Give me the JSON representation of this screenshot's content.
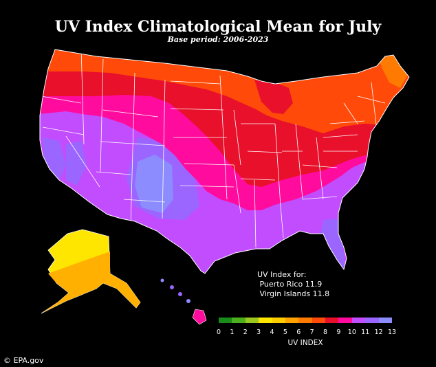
{
  "title": "UV Index Climatological Mean for July",
  "subtitle": "Base period: 2006-2023",
  "note": {
    "heading": "UV Index for:",
    "lines": [
      " Puerto Rico 11.9",
      " Virgin Islands 11.8"
    ]
  },
  "colorbar": {
    "label": "UV INDEX",
    "ticks": [
      "0",
      "1",
      "2",
      "3",
      "4",
      "5",
      "6",
      "7",
      "8",
      "9",
      "10",
      "11",
      "12",
      "13"
    ],
    "colors": [
      "#1a8a1a",
      "#4cb01e",
      "#9ac81e",
      "#ffe600",
      "#ffcc00",
      "#ffa200",
      "#ff7a00",
      "#ff4a0a",
      "#e8102a",
      "#ff0b9e",
      "#c24dff",
      "#9b66ff",
      "#8c8cff"
    ]
  },
  "credit": "© EPA.gov",
  "map_colors": {
    "cat11": "#c24dff",
    "cat12": "#9b66ff",
    "cat13": "#8c8cff",
    "cat10": "#ff0b9e",
    "cat9": "#e8102a",
    "cat8": "#ff4a0a",
    "cat7": "#ff7a00",
    "alaska_main": "#ffe600",
    "alaska_south": "#ffb000",
    "boundary": "#ffffff"
  }
}
